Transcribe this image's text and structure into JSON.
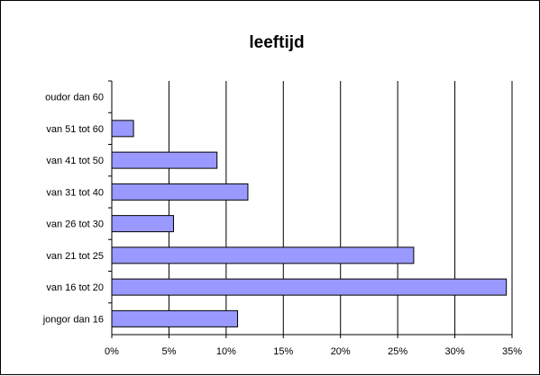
{
  "chart_data": {
    "type": "bar",
    "orientation": "horizontal",
    "title": "leeftijd",
    "xlabel": "",
    "ylabel": "",
    "categories": [
      "jongor dan 16",
      "van 16 tot 20",
      "van 21 tot 25",
      "van 26 tot 30",
      "van 31 tot 40",
      "van 41 tot 50",
      "van 51 tot 60",
      "oudor dan 60"
    ],
    "values": [
      0.11,
      0.345,
      0.264,
      0.054,
      0.119,
      0.092,
      0.019,
      0.0
    ],
    "x_ticks": [
      "0%",
      "5%",
      "10%",
      "15%",
      "20%",
      "25%",
      "30%",
      "35%"
    ],
    "xlim": [
      0,
      0.35
    ],
    "grid": true,
    "legend": "none",
    "colors": {
      "bar_fill": "#9999ff",
      "bar_stroke": "#000000",
      "grid": "#000000"
    }
  }
}
